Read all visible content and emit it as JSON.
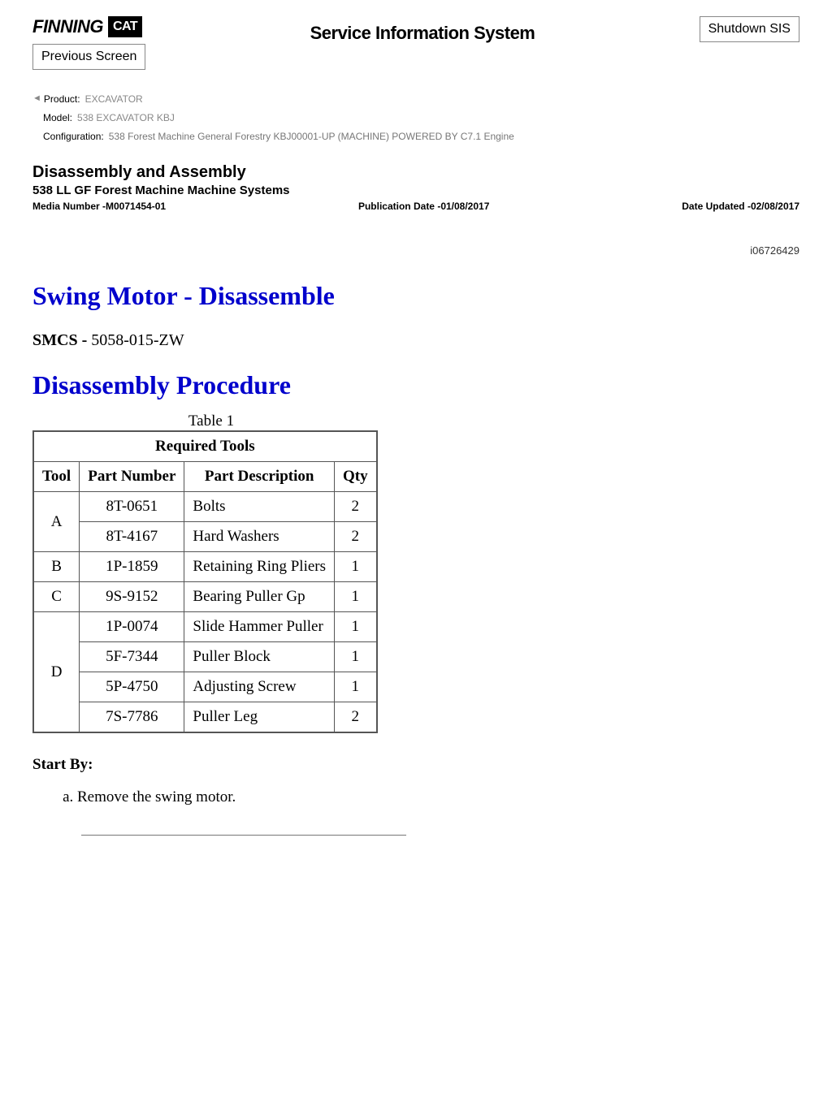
{
  "header": {
    "logo_text": "FINNING",
    "logo_box": "CAT",
    "sis_title": "Service Information System",
    "shutdown_btn": "Shutdown SIS",
    "prev_btn": "Previous Screen"
  },
  "meta": {
    "product_key": "Product:",
    "product_val": "EXCAVATOR",
    "model_key": "Model:",
    "model_val": "538 EXCAVATOR KBJ",
    "config_key": "Configuration:",
    "config_val": "538 Forest Machine General Forestry KBJ00001-UP (MACHINE) POWERED BY C7.1 Engine"
  },
  "doc": {
    "category": "Disassembly and Assembly",
    "subtitle": "538 LL GF Forest Machine Machine Systems",
    "media_label": "Media Number -M0071454-01",
    "pub_label": "Publication Date -01/08/2017",
    "updated_label": "Date Updated -02/08/2017",
    "doc_id": "i06726429",
    "title": "Swing Motor - Disassemble",
    "smcs_label": "SMCS - ",
    "smcs_code": "5058-015-ZW",
    "procedure_title": "Disassembly Procedure"
  },
  "table": {
    "caption": "Table 1",
    "title": "Required Tools",
    "columns": [
      "Tool",
      "Part Number",
      "Part Description",
      "Qty"
    ],
    "groups": [
      {
        "tool": "A",
        "rows": [
          {
            "pn": "8T-0651",
            "desc": "Bolts",
            "qty": "2"
          },
          {
            "pn": "8T-4167",
            "desc": "Hard Washers",
            "qty": "2"
          }
        ]
      },
      {
        "tool": "B",
        "rows": [
          {
            "pn": "1P-1859",
            "desc": "Retaining Ring Pliers",
            "qty": "1"
          }
        ]
      },
      {
        "tool": "C",
        "rows": [
          {
            "pn": "9S-9152",
            "desc": "Bearing Puller Gp",
            "qty": "1"
          }
        ]
      },
      {
        "tool": "D",
        "rows": [
          {
            "pn": "1P-0074",
            "desc": "Slide Hammer Puller",
            "qty": "1"
          },
          {
            "pn": "5F-7344",
            "desc": "Puller Block",
            "qty": "1"
          },
          {
            "pn": "5P-4750",
            "desc": "Adjusting Screw",
            "qty": "1"
          },
          {
            "pn": "7S-7786",
            "desc": "Puller Leg",
            "qty": "2"
          }
        ]
      }
    ]
  },
  "start": {
    "label": "Start By:",
    "steps": [
      "Remove the swing motor."
    ]
  }
}
